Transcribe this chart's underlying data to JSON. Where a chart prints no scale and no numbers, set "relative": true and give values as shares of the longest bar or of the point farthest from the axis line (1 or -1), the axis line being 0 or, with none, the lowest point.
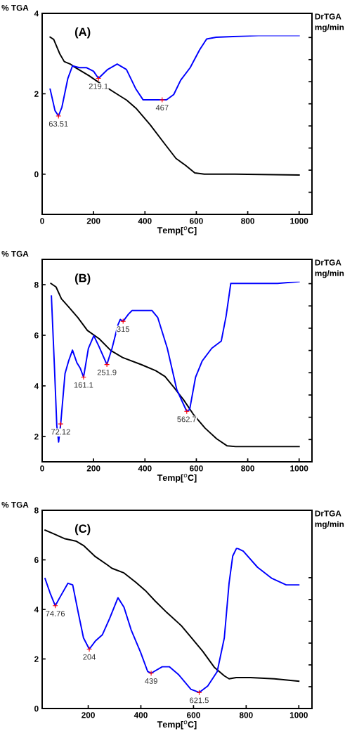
{
  "chart_data": [
    {
      "type": "line",
      "xlabel": "Temp[$^{o}$C]",
      "ylabel": "% TGA",
      "xlim": [
        0,
        1050
      ],
      "xticks": [
        0,
        200,
        400,
        600,
        800,
        1000
      ],
      "ylim": [
        -1,
        4
      ],
      "yticks": [
        0,
        2,
        4
      ],
      "annotations": [
        "(A)"
      ],
      "series": [
        {
          "color": "#000000",
          "x": [
            31,
            45,
            68,
            86,
            109,
            127,
            182,
            228,
            292,
            329,
            365,
            420,
            475,
            521,
            558,
            594,
            631,
            750,
            1000
          ],
          "values": [
            3.41,
            3.35,
            3.0,
            2.8,
            2.74,
            2.66,
            2.45,
            2.25,
            1.99,
            1.84,
            1.64,
            1.23,
            0.77,
            0.39,
            0.22,
            0.03,
            0,
            0,
            -0.02
          ]
        }
      ]
    },
    {
      "type": "line",
      "relative": true,
      "ylabel": "DrTGA\nmg/min",
      "xlim": [
        0,
        1050
      ],
      "tick_labels": false,
      "annotations": [
        {
          "text": "63.51",
          "x": 63.51,
          "y": 0.55
        },
        {
          "text": "219.1",
          "x": 219.1,
          "y": 0.76
        },
        {
          "text": "467",
          "x": 467,
          "y": 0.64
        }
      ],
      "series": [
        {
          "color": "#0000ff",
          "x": [
            31,
            50,
            63.51,
            77,
            100,
            118,
            145,
            173,
            200,
            219.1,
            255,
            292,
            328,
            365,
            393,
            420,
            467,
            484,
            512,
            539,
            576,
            613,
            640,
            677,
            842,
            1000
          ],
          "values": [
            0.7,
            0.58,
            0.55,
            0.6,
            0.76,
            0.83,
            0.82,
            0.82,
            0.8,
            0.76,
            0.81,
            0.84,
            0.81,
            0.7,
            0.64,
            0.64,
            0.64,
            0.64,
            0.67,
            0.75,
            0.82,
            0.92,
            0.98,
            0.99,
            1,
            1
          ]
        }
      ]
    },
    {
      "type": "line",
      "xlabel": "Temp[$^{o}$C]",
      "ylabel": "% TGA",
      "xlim": [
        0,
        1050
      ],
      "xticks": [
        0,
        200,
        400,
        600,
        800,
        1000
      ],
      "ylim": [
        1,
        9
      ],
      "yticks": [
        2,
        4,
        6,
        8
      ],
      "annotations": [
        "(B)"
      ],
      "series": [
        {
          "color": "#000000",
          "x": [
            34,
            54,
            75,
            103,
            139,
            176,
            222,
            267,
            313,
            386,
            442,
            478,
            515,
            551,
            588,
            634,
            679,
            720,
            753,
            1000
          ],
          "values": [
            8.05,
            7.91,
            7.44,
            7.12,
            6.7,
            6.19,
            5.86,
            5.4,
            5.12,
            4.84,
            4.6,
            4.37,
            3.91,
            3.44,
            2.88,
            2.33,
            1.91,
            1.63,
            1.6,
            1.6
          ]
        }
      ]
    },
    {
      "type": "line",
      "relative": true,
      "ylabel": "DrTGA\nmg/min",
      "xlim": [
        0,
        1050
      ],
      "tick_labels": false,
      "annotations": [
        {
          "text": "72.12",
          "x": 72.12,
          "y": 0.21
        },
        {
          "text": "161.1",
          "x": 161.1,
          "y": 0.47
        },
        {
          "text": "251.9",
          "x": 251.9,
          "y": 0.54
        },
        {
          "text": "315",
          "x": 315,
          "y": 0.78
        },
        {
          "text": "562.7",
          "x": 562.7,
          "y": 0.28
        }
      ],
      "series": [
        {
          "color": "#0000ff",
          "x": [
            36,
            48,
            57,
            64,
            72.12,
            89,
            103,
            118,
            135,
            148,
            161.1,
            180,
            201,
            221,
            251.9,
            272,
            295,
            304,
            315,
            336,
            350,
            377,
            404,
            427,
            450,
            487,
            524,
            562.7,
            574,
            597,
            623,
            660,
            697,
            716,
            734,
            747,
            842,
            916,
            1000
          ],
          "values": [
            0.92,
            0.52,
            0.2,
            0.11,
            0.21,
            0.49,
            0.56,
            0.62,
            0.55,
            0.52,
            0.47,
            0.63,
            0.7,
            0.64,
            0.54,
            0.63,
            0.76,
            0.79,
            0.78,
            0.82,
            0.84,
            0.84,
            0.84,
            0.84,
            0.8,
            0.63,
            0.4,
            0.28,
            0.29,
            0.47,
            0.56,
            0.63,
            0.67,
            0.81,
            0.99,
            0.99,
            0.99,
            0.99,
            1
          ]
        }
      ]
    },
    {
      "type": "line",
      "xlabel": "Temp[$^{o}$C]",
      "ylabel": "% TGA",
      "xlim": [
        25,
        1050
      ],
      "xticks": [
        200,
        400,
        600,
        800,
        1000
      ],
      "ylim": [
        0,
        8
      ],
      "yticks": [
        0,
        2,
        4,
        6,
        8
      ],
      "annotations": [
        "(C)"
      ],
      "series": [
        {
          "color": "#000000",
          "x": [
            36,
            73,
            109,
            155,
            182,
            227,
            272,
            290,
            336,
            381,
            417,
            454,
            499,
            553,
            590,
            635,
            680,
            717,
            735,
            762,
            817,
            907,
            1000
          ],
          "values": [
            7.2,
            7.03,
            6.86,
            6.75,
            6.58,
            6.13,
            5.8,
            5.66,
            5.47,
            5.09,
            4.76,
            4.34,
            3.87,
            3.35,
            2.88,
            2.31,
            1.65,
            1.32,
            1.2,
            1.25,
            1.25,
            1.2,
            1.1
          ]
        }
      ]
    },
    {
      "type": "line",
      "relative": true,
      "ylabel": "DrTGA\nmg/min",
      "xlim": [
        25,
        1050
      ],
      "tick_labels": false,
      "annotations": [
        {
          "text": "74.76",
          "x": 74.76,
          "y": 0.64
        },
        {
          "text": "204",
          "x": 204,
          "y": 0.37
        },
        {
          "text": "439",
          "x": 439,
          "y": 0.22
        },
        {
          "text": "621.5",
          "x": 621.5,
          "y": 0.1
        }
      ],
      "series": [
        {
          "color": "#0000ff",
          "x": [
            36,
            55,
            74.76,
            95,
            123,
            141,
            163,
            182,
            204,
            227,
            254,
            281,
            313,
            336,
            363,
            399,
            426,
            439,
            481,
            508,
            544,
            590,
            621.5,
            654,
            690,
            717,
            735,
            749,
            764,
            789,
            843,
            898,
            952,
            1000
          ],
          "values": [
            0.81,
            0.72,
            0.64,
            0.7,
            0.78,
            0.77,
            0.59,
            0.44,
            0.37,
            0.42,
            0.46,
            0.56,
            0.69,
            0.63,
            0.49,
            0.35,
            0.23,
            0.22,
            0.26,
            0.26,
            0.21,
            0.12,
            0.1,
            0.14,
            0.23,
            0.44,
            0.78,
            0.95,
            1,
            0.98,
            0.88,
            0.81,
            0.77,
            0.77
          ]
        }
      ]
    }
  ]
}
